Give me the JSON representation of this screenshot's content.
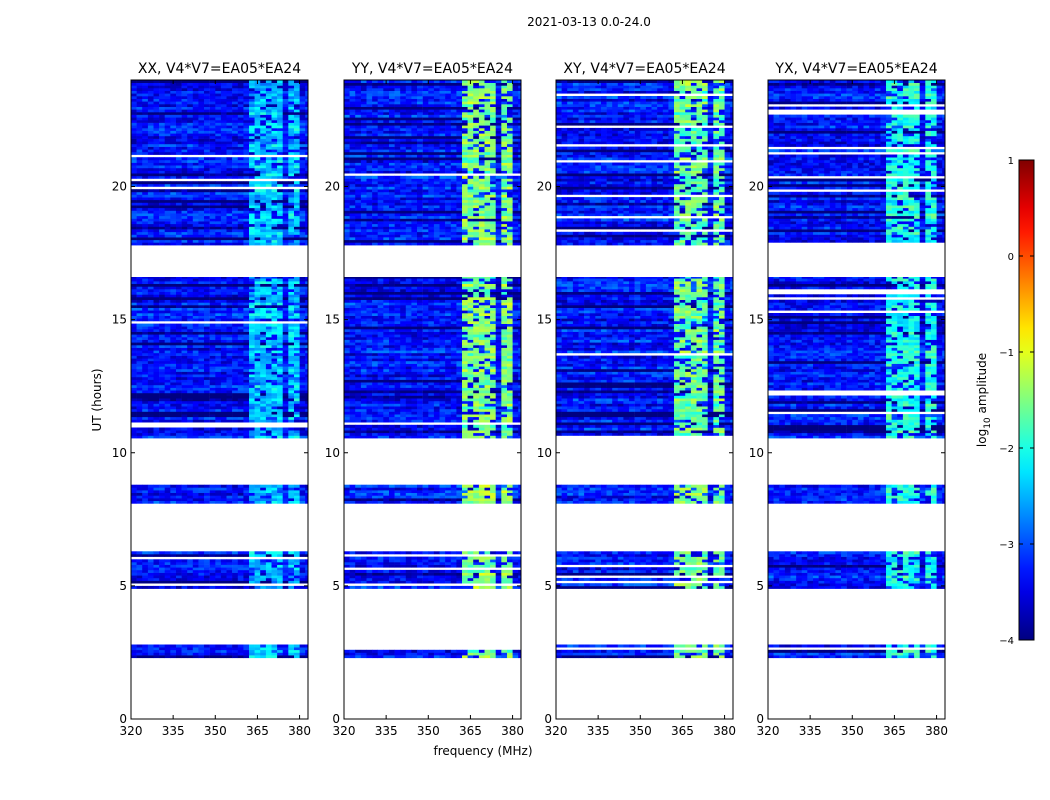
{
  "chart_data": {
    "type": "heatmap",
    "suptitle": "2021-03-13 0.0-24.0",
    "xlabel": "frequency (MHz)",
    "ylabel": "UT (hours)",
    "xlim": [
      320,
      383
    ],
    "ylim": [
      0,
      24
    ],
    "xticks": [
      320,
      335,
      350,
      365,
      380
    ],
    "yticks": [
      0,
      5,
      10,
      15,
      20
    ],
    "colorbar": {
      "label": "log10 amplitude",
      "label_base": "log",
      "label_sub": "10",
      "label_rest": "amplitude",
      "range": [
        -4,
        1
      ],
      "ticks": [
        1,
        0,
        -1,
        -2,
        -3,
        -4
      ],
      "colormap": "jet"
    },
    "data_blocks_ut": [
      [
        2.3,
        2.8
      ],
      [
        4.9,
        6.3
      ],
      [
        8.1,
        8.8
      ],
      [
        10.55,
        16.6
      ],
      [
        17.8,
        24.0
      ]
    ],
    "band_center_log_amp": {
      "XX": -2.4,
      "YY": -1.5,
      "XY": -1.6,
      "YX": -2.0
    },
    "panels": [
      {
        "title": "XX, V4*V7=EA05*EA24",
        "key": "XX"
      },
      {
        "title": "YY, V4*V7=EA05*EA24",
        "key": "YY"
      },
      {
        "title": "XY, V4*V7=EA05*EA24",
        "key": "XY"
      },
      {
        "title": "YX, V4*V7=EA05*EA24",
        "key": "YX"
      }
    ]
  }
}
